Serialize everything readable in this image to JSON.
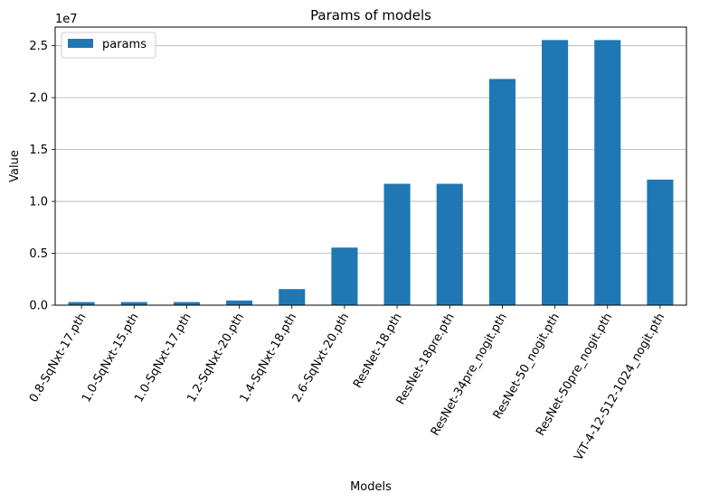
{
  "chart_data": {
    "type": "bar",
    "title": "Params of models",
    "xlabel": "Models",
    "ylabel": "Value",
    "y_scale_note": "1e7",
    "ylim": [
      0,
      26800000
    ],
    "yticks": [
      0,
      5000000,
      10000000,
      15000000,
      20000000,
      25000000
    ],
    "ytick_labels": [
      "0.0",
      "0.5",
      "1.0",
      "1.5",
      "2.0",
      "2.5"
    ],
    "grid": "y",
    "legend_position": "top-left",
    "categories": [
      "0.8-SqNxt-17.pth",
      "1.0-SqNxt-15.pth",
      "1.0-SqNxt-17.pth",
      "1.2-SqNxt-20.pth",
      "1.4-SqNxt-18.pth",
      "2.6-SqNxt-20.pth",
      "ResNet-18.pth",
      "ResNet-18pre.pth",
      "ResNet-34pre_nogit.pth",
      "ResNet-50_nogit.pth",
      "ResNet-50pre_nogit.pth",
      "ViT-4-12-512-1024_nogit.pth"
    ],
    "series": [
      {
        "name": "params",
        "color": "#1f77b4",
        "values": [
          300000,
          300000,
          300000,
          450000,
          1550000,
          5550000,
          11700000,
          11700000,
          21800000,
          25550000,
          25550000,
          12100000
        ]
      }
    ]
  }
}
